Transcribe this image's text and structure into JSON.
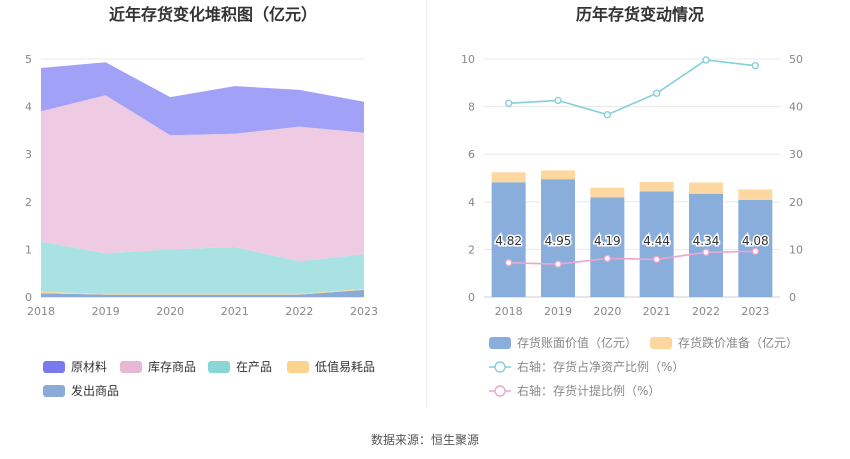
{
  "source_text": "数据来源：恒生聚源",
  "chart_data": [
    {
      "type": "area",
      "stacked": true,
      "title": "近年存货变化堆积图（亿元）",
      "categories": [
        "2018",
        "2019",
        "2020",
        "2021",
        "2022",
        "2023"
      ],
      "ylim": [
        0,
        5
      ],
      "yticks": [
        "0",
        "1",
        "2",
        "3",
        "4",
        "5"
      ],
      "grid": true,
      "legend_position": "bottom-left",
      "series": [
        {
          "name": "发出商品",
          "color": "#8aaad8",
          "values": [
            0.08,
            0.05,
            0.05,
            0.05,
            0.05,
            0.15
          ]
        },
        {
          "name": "低值易耗品",
          "color": "#fcd89a",
          "values": [
            0.03,
            0.02,
            0.02,
            0.02,
            0.02,
            0.02
          ]
        },
        {
          "name": "在产品",
          "color": "#a9e2e2",
          "values": [
            1.05,
            0.85,
            0.93,
            0.98,
            0.68,
            0.73
          ]
        },
        {
          "name": "库存商品",
          "color": "#eecbe2",
          "values": [
            2.74,
            3.32,
            2.4,
            2.38,
            2.83,
            2.55
          ]
        },
        {
          "name": "原材料",
          "color": "#a1a1f7",
          "values": [
            0.91,
            0.69,
            0.8,
            1.0,
            0.77,
            0.65
          ]
        }
      ],
      "legend": [
        {
          "name": "原材料",
          "color": "#7a7aef"
        },
        {
          "name": "库存商品",
          "color": "#e9b7d6"
        },
        {
          "name": "在产品",
          "color": "#8ad6d6"
        },
        {
          "name": "低值易耗品",
          "color": "#fcd38c"
        },
        {
          "name": "发出商品",
          "color": "#8aaad8"
        }
      ]
    },
    {
      "type": "bar",
      "stacked": true,
      "title": "历年存货变动情况",
      "categories": [
        "2018",
        "2019",
        "2020",
        "2021",
        "2022",
        "2023"
      ],
      "ylim": [
        0,
        10
      ],
      "yticks": [
        "0",
        "2",
        "4",
        "6",
        "8",
        "10"
      ],
      "y2lim": [
        0,
        50
      ],
      "y2ticks": [
        "0",
        "10",
        "20",
        "30",
        "40",
        "50"
      ],
      "grid": true,
      "series": [
        {
          "name": "存货账面价值（亿元）",
          "axis": "left",
          "kind": "bar",
          "color": "#8aaedc",
          "values": [
            4.82,
            4.95,
            4.19,
            4.44,
            4.34,
            4.08
          ],
          "labels": [
            "4.82",
            "4.95",
            "4.19",
            "4.44",
            "4.34",
            "4.08"
          ]
        },
        {
          "name": "存货跌价准备（亿元）",
          "axis": "left",
          "kind": "bar",
          "color": "#fcd8a0",
          "values": [
            0.42,
            0.37,
            0.4,
            0.4,
            0.47,
            0.44
          ]
        },
        {
          "name": "右轴：存货占净资产比例（%）",
          "axis": "right",
          "kind": "line",
          "color": "#84d0d8",
          "values": [
            40.7,
            41.3,
            38.3,
            42.8,
            49.8,
            48.6
          ]
        },
        {
          "name": "右轴：存货计提比例（%）",
          "axis": "right",
          "kind": "line",
          "color": "#e9a7cf",
          "values": [
            7.2,
            6.9,
            8.1,
            7.9,
            9.4,
            9.6
          ]
        }
      ],
      "legend_position": "bottom"
    }
  ]
}
